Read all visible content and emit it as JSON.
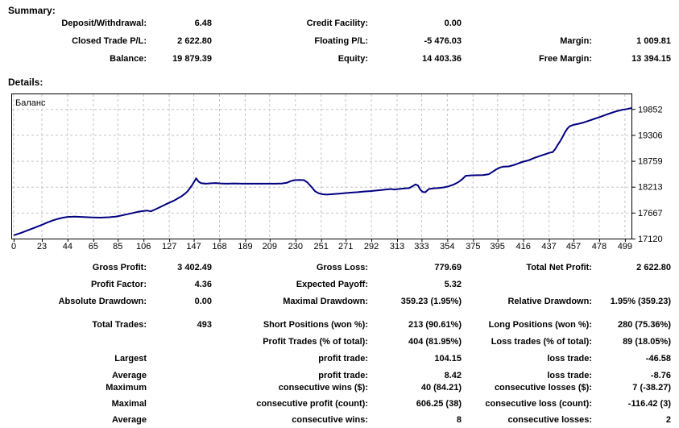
{
  "summary": {
    "heading": "Summary:",
    "rows": [
      [
        "Deposit/Withdrawal:",
        "6.48",
        "Credit Facility:",
        "0.00",
        "",
        ""
      ],
      [
        "Closed Trade P/L:",
        "2 622.80",
        "Floating P/L:",
        "-5 476.03",
        "Margin:",
        "1 009.81"
      ],
      [
        "Balance:",
        "19 879.39",
        "Equity:",
        "14 403.36",
        "Free Margin:",
        "13 394.15"
      ]
    ]
  },
  "details": {
    "heading": "Details:"
  },
  "chart_data": {
    "type": "line",
    "title": "Баланс",
    "legend_position": "top-left-inside",
    "grid": true,
    "line_color": "#000080",
    "grid_color": "#c4c4c4",
    "border_color": "#000000",
    "x_ticks": [
      0,
      23,
      44,
      65,
      85,
      106,
      127,
      147,
      168,
      189,
      209,
      230,
      251,
      271,
      292,
      313,
      333,
      354,
      375,
      395,
      416,
      437,
      457,
      478,
      499
    ],
    "y_ticks": [
      17120,
      17667,
      18213,
      18759,
      19306,
      19852
    ],
    "xlim": [
      0,
      505
    ],
    "ylim": [
      17120,
      20180
    ],
    "series": [
      {
        "name": "Баланс",
        "points": [
          [
            0,
            17190
          ],
          [
            6,
            17240
          ],
          [
            12,
            17300
          ],
          [
            18,
            17360
          ],
          [
            23,
            17410
          ],
          [
            28,
            17465
          ],
          [
            32,
            17505
          ],
          [
            36,
            17535
          ],
          [
            40,
            17560
          ],
          [
            44,
            17578
          ],
          [
            50,
            17582
          ],
          [
            57,
            17574
          ],
          [
            64,
            17566
          ],
          [
            71,
            17562
          ],
          [
            78,
            17570
          ],
          [
            84,
            17585
          ],
          [
            90,
            17618
          ],
          [
            96,
            17652
          ],
          [
            102,
            17688
          ],
          [
            106,
            17702
          ],
          [
            109,
            17710
          ],
          [
            112,
            17694
          ],
          [
            116,
            17740
          ],
          [
            120,
            17790
          ],
          [
            124,
            17840
          ],
          [
            127,
            17874
          ],
          [
            131,
            17922
          ],
          [
            134,
            17968
          ],
          [
            137,
            18010
          ],
          [
            140,
            18070
          ],
          [
            142,
            18120
          ],
          [
            144,
            18190
          ],
          [
            146,
            18260
          ],
          [
            148,
            18350
          ],
          [
            149,
            18392
          ],
          [
            151,
            18320
          ],
          [
            153,
            18290
          ],
          [
            157,
            18278
          ],
          [
            161,
            18286
          ],
          [
            165,
            18292
          ],
          [
            169,
            18282
          ],
          [
            174,
            18277
          ],
          [
            180,
            18282
          ],
          [
            187,
            18277
          ],
          [
            194,
            18277
          ],
          [
            201,
            18277
          ],
          [
            208,
            18277
          ],
          [
            214,
            18277
          ],
          [
            219,
            18282
          ],
          [
            223,
            18296
          ],
          [
            226,
            18330
          ],
          [
            229,
            18352
          ],
          [
            233,
            18358
          ],
          [
            237,
            18352
          ],
          [
            240,
            18300
          ],
          [
            242,
            18240
          ],
          [
            244,
            18180
          ],
          [
            246,
            18120
          ],
          [
            249,
            18075
          ],
          [
            252,
            18055
          ],
          [
            256,
            18048
          ],
          [
            261,
            18058
          ],
          [
            266,
            18068
          ],
          [
            271,
            18080
          ],
          [
            276,
            18090
          ],
          [
            281,
            18100
          ],
          [
            286,
            18112
          ],
          [
            291,
            18122
          ],
          [
            296,
            18134
          ],
          [
            301,
            18146
          ],
          [
            305,
            18158
          ],
          [
            308,
            18165
          ],
          [
            311,
            18155
          ],
          [
            315,
            18168
          ],
          [
            319,
            18178
          ],
          [
            323,
            18188
          ],
          [
            326,
            18230
          ],
          [
            328,
            18262
          ],
          [
            330,
            18240
          ],
          [
            332,
            18150
          ],
          [
            334,
            18105
          ],
          [
            336,
            18098
          ],
          [
            339,
            18165
          ],
          [
            343,
            18180
          ],
          [
            347,
            18188
          ],
          [
            351,
            18200
          ],
          [
            355,
            18222
          ],
          [
            359,
            18258
          ],
          [
            363,
            18310
          ],
          [
            366,
            18368
          ],
          [
            369,
            18445
          ],
          [
            373,
            18452
          ],
          [
            378,
            18456
          ],
          [
            383,
            18458
          ],
          [
            388,
            18478
          ],
          [
            391,
            18530
          ],
          [
            394,
            18580
          ],
          [
            397,
            18620
          ],
          [
            400,
            18638
          ],
          [
            404,
            18642
          ],
          [
            408,
            18668
          ],
          [
            412,
            18706
          ],
          [
            416,
            18744
          ],
          [
            420,
            18768
          ],
          [
            425,
            18822
          ],
          [
            430,
            18866
          ],
          [
            435,
            18908
          ],
          [
            438,
            18936
          ],
          [
            440,
            18942
          ],
          [
            442,
            19006
          ],
          [
            444,
            19090
          ],
          [
            446,
            19170
          ],
          [
            448,
            19258
          ],
          [
            450,
            19360
          ],
          [
            452,
            19438
          ],
          [
            454,
            19490
          ],
          [
            457,
            19518
          ],
          [
            461,
            19540
          ],
          [
            465,
            19566
          ],
          [
            469,
            19600
          ],
          [
            473,
            19636
          ],
          [
            477,
            19672
          ],
          [
            481,
            19708
          ],
          [
            485,
            19744
          ],
          [
            489,
            19780
          ],
          [
            493,
            19812
          ],
          [
            497,
            19836
          ],
          [
            501,
            19854
          ],
          [
            505,
            19876
          ]
        ]
      }
    ]
  },
  "stats": {
    "rows": [
      [
        "Gross Profit:",
        "3 402.49",
        "Gross Loss:",
        "779.69",
        "Total Net Profit:",
        "2 622.80"
      ],
      [
        "Profit Factor:",
        "4.36",
        "Expected Payoff:",
        "5.32",
        "",
        ""
      ],
      [
        "Absolute Drawdown:",
        "0.00",
        "Maximal Drawdown:",
        "359.23 (1.95%)",
        "Relative Drawdown:",
        "1.95% (359.23)"
      ],
      [
        "Total Trades:",
        "493",
        "Short Positions (won %):",
        "213 (90.61%)",
        "Long Positions (won %):",
        "280 (75.36%)"
      ],
      [
        "",
        "",
        "Profit Trades (% of total):",
        "404 (81.95%)",
        "Loss trades (% of total):",
        "89 (18.05%)"
      ],
      [
        "Largest",
        "",
        "profit trade:",
        "104.15",
        "loss trade:",
        "-46.58"
      ],
      [
        "Average",
        "",
        "profit trade:",
        "8.42",
        "loss trade:",
        "-8.76"
      ],
      [
        "Maximum",
        "",
        "consecutive wins ($):",
        "40 (84.21)",
        "consecutive losses ($):",
        "7 (-38.27)"
      ],
      [
        "Maximal",
        "",
        "consecutive profit (count):",
        "606.25 (38)",
        "consecutive loss (count):",
        "-116.42 (3)"
      ],
      [
        "Average",
        "",
        "consecutive wins:",
        "8",
        "consecutive losses:",
        "2"
      ]
    ]
  }
}
